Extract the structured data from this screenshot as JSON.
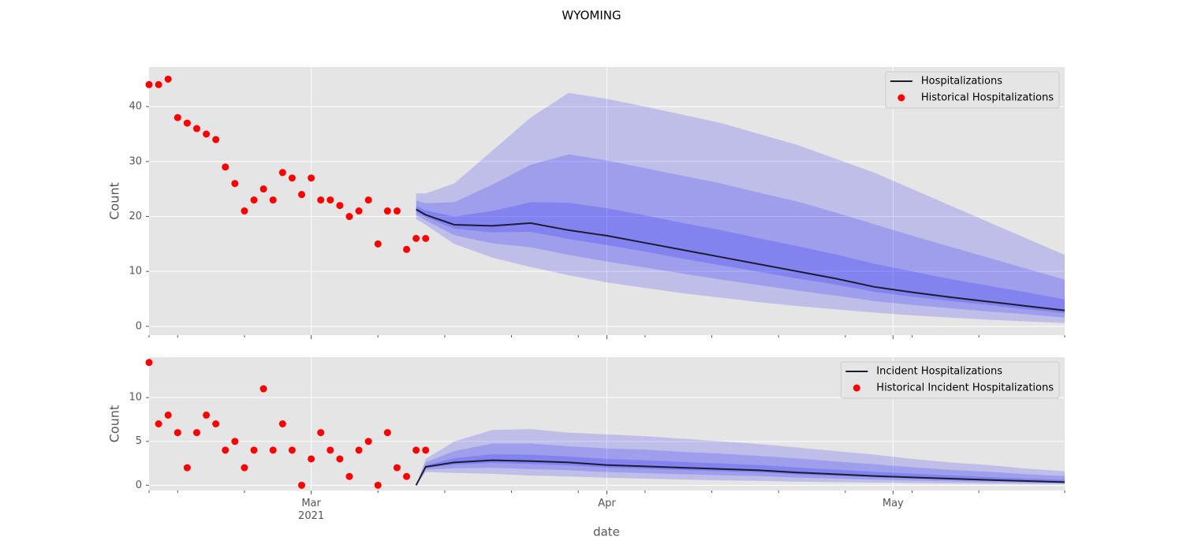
{
  "title": "WYOMING",
  "shared_xaxis": {
    "label": "date",
    "xlim": [
      "2021-02-12",
      "2021-05-19"
    ],
    "xticks": [
      {
        "value": "2021-03-01",
        "label": "Mar\n2021"
      },
      {
        "value": "2021-04-01",
        "label": "Apr"
      },
      {
        "value": "2021-05-01",
        "label": "May"
      }
    ],
    "xminorticks": [
      "2021-02-12",
      "2021-02-15",
      "2021-02-22",
      "2021-03-08",
      "2021-03-15",
      "2021-03-22",
      "2021-03-29",
      "2021-04-05",
      "2021-04-12",
      "2021-04-19",
      "2021-04-26",
      "2021-05-03",
      "2021-05-10",
      "2021-05-19"
    ]
  },
  "chart_data": [
    {
      "type": "line",
      "ylabel": "Count",
      "ylim": [
        -1.6,
        47.2
      ],
      "yticks": [
        0,
        10,
        20,
        30,
        40
      ],
      "grid": true,
      "legend": "upper right",
      "band_color": "#0000ff",
      "series": [
        {
          "name": "Hospitalizations",
          "color": "#1c1c30",
          "x": [
            "2021-03-12",
            "2021-03-13",
            "2021-03-16",
            "2021-03-20",
            "2021-03-24",
            "2021-03-28",
            "2021-04-01",
            "2021-04-05",
            "2021-04-09",
            "2021-04-13",
            "2021-04-17",
            "2021-04-21",
            "2021-04-25",
            "2021-04-29",
            "2021-05-03",
            "2021-05-07",
            "2021-05-11",
            "2021-05-15",
            "2021-05-19"
          ],
          "values": [
            21.3,
            20.3,
            18.5,
            18.3,
            18.8,
            17.5,
            16.5,
            15.2,
            13.9,
            12.6,
            11.3,
            10.0,
            8.7,
            7.2,
            6.2,
            5.3,
            4.5,
            3.7,
            2.9
          ]
        },
        {
          "name": "Historical Hospitalizations",
          "type": "scatter",
          "color": "#ff0000",
          "x": [
            "2021-02-12",
            "2021-02-13",
            "2021-02-14",
            "2021-02-15",
            "2021-02-16",
            "2021-02-17",
            "2021-02-18",
            "2021-02-19",
            "2021-02-20",
            "2021-02-21",
            "2021-02-22",
            "2021-02-23",
            "2021-02-24",
            "2021-02-25",
            "2021-02-26",
            "2021-02-27",
            "2021-02-28",
            "2021-03-01",
            "2021-03-02",
            "2021-03-03",
            "2021-03-04",
            "2021-03-05",
            "2021-03-06",
            "2021-03-07",
            "2021-03-08",
            "2021-03-09",
            "2021-03-10",
            "2021-03-11",
            "2021-03-12",
            "2021-03-13"
          ],
          "values": [
            44,
            44,
            45,
            38,
            37,
            36,
            35,
            34,
            29,
            26,
            21,
            23,
            25,
            23,
            28,
            27,
            24,
            27,
            23,
            23,
            22,
            20,
            21,
            23,
            15,
            21,
            21,
            14,
            16,
            16
          ]
        }
      ],
      "bands": [
        {
          "lower": [
            19.5,
            18.5,
            15,
            12.5,
            10.8,
            9.3,
            8.0,
            7.0,
            6.0,
            5.2,
            4.4,
            3.7,
            3.1,
            2.5,
            2.0,
            1.6,
            1.2,
            0.9,
            0.6
          ],
          "upper": [
            24.2,
            24.2,
            26,
            32,
            38,
            42.5,
            41.4,
            40,
            38.5,
            37,
            35,
            33,
            30.5,
            28,
            25,
            22,
            19,
            16,
            13
          ]
        },
        {
          "lower": [
            20.3,
            19.3,
            16.6,
            15.1,
            14.4,
            13.0,
            11.8,
            10.7,
            9.6,
            8.5,
            7.5,
            6.5,
            5.6,
            4.6,
            3.9,
            3.3,
            2.7,
            2.2,
            1.6
          ],
          "upper": [
            22.9,
            22.4,
            22.6,
            25.8,
            29.4,
            31.3,
            30.2,
            28.8,
            27.4,
            26.0,
            24.3,
            22.7,
            20.7,
            18.6,
            16.5,
            14.5,
            12.5,
            10.5,
            8.5
          ]
        },
        {
          "lower": [
            20.9,
            19.9,
            17.8,
            17.1,
            17.2,
            15.9,
            14.8,
            13.6,
            12.3,
            11.1,
            9.9,
            8.7,
            7.6,
            6.3,
            5.4,
            4.6,
            3.9,
            3.1,
            2.4
          ],
          "upper": [
            21.9,
            21.1,
            20.0,
            21.0,
            22.6,
            22.5,
            21.5,
            20.2,
            18.8,
            17.5,
            16.0,
            14.6,
            13.1,
            11.4,
            10.0,
            8.6,
            7.4,
            6.2,
            4.9
          ]
        }
      ]
    },
    {
      "type": "line",
      "ylabel": "Count",
      "ylim": [
        -0.6,
        14.6
      ],
      "yticks": [
        0,
        5,
        10
      ],
      "grid": true,
      "legend": "upper right",
      "band_color": "#0000ff",
      "series": [
        {
          "name": "Incident Hospitalizations",
          "color": "#1c1c30",
          "x": [
            "2021-03-12",
            "2021-03-13",
            "2021-03-16",
            "2021-03-20",
            "2021-03-24",
            "2021-03-28",
            "2021-04-01",
            "2021-04-05",
            "2021-04-09",
            "2021-04-13",
            "2021-04-17",
            "2021-04-21",
            "2021-04-25",
            "2021-04-29",
            "2021-05-03",
            "2021-05-07",
            "2021-05-11",
            "2021-05-15",
            "2021-05-19"
          ],
          "values": [
            0,
            2.1,
            2.6,
            2.85,
            2.75,
            2.6,
            2.3,
            2.15,
            2.0,
            1.85,
            1.7,
            1.45,
            1.25,
            1.05,
            0.9,
            0.75,
            0.6,
            0.48,
            0.36
          ]
        },
        {
          "name": "Historical Incident Hospitalizations",
          "type": "scatter",
          "color": "#ff0000",
          "x": [
            "2021-02-12",
            "2021-02-13",
            "2021-02-14",
            "2021-02-15",
            "2021-02-16",
            "2021-02-17",
            "2021-02-18",
            "2021-02-19",
            "2021-02-20",
            "2021-02-21",
            "2021-02-22",
            "2021-02-23",
            "2021-02-24",
            "2021-02-25",
            "2021-02-26",
            "2021-02-27",
            "2021-02-28",
            "2021-03-01",
            "2021-03-02",
            "2021-03-03",
            "2021-03-04",
            "2021-03-05",
            "2021-03-06",
            "2021-03-07",
            "2021-03-08",
            "2021-03-09",
            "2021-03-10",
            "2021-03-11",
            "2021-03-12",
            "2021-03-13"
          ],
          "values": [
            14,
            7,
            8,
            6,
            2,
            6,
            8,
            7,
            4,
            5,
            2,
            4,
            11,
            4,
            7,
            4,
            0,
            3,
            6,
            4,
            3,
            1,
            4,
            5,
            0,
            6,
            2,
            1,
            4,
            4
          ]
        }
      ],
      "bands": [
        {
          "lower": [
            0,
            1.5,
            1.4,
            1.3,
            1.1,
            1.0,
            0.85,
            0.75,
            0.65,
            0.55,
            0.5,
            0.4,
            0.35,
            0.3,
            0.25,
            0.2,
            0.15,
            0.12,
            0.1
          ],
          "upper": [
            0,
            3.0,
            5.0,
            6.3,
            6.4,
            6.0,
            5.8,
            5.6,
            5.3,
            5.0,
            4.7,
            4.3,
            3.9,
            3.5,
            3.0,
            2.6,
            2.3,
            1.9,
            1.6
          ]
        },
        {
          "lower": [
            0,
            1.77,
            1.94,
            2.0,
            1.84,
            1.72,
            1.5,
            1.38,
            1.26,
            1.13,
            1.04,
            0.87,
            0.76,
            0.64,
            0.54,
            0.45,
            0.35,
            0.28,
            0.22
          ],
          "upper": [
            0,
            2.6,
            3.9,
            4.75,
            4.75,
            4.45,
            4.2,
            4.05,
            3.8,
            3.6,
            3.35,
            3.05,
            2.7,
            2.4,
            2.05,
            1.75,
            1.55,
            1.26,
            1.04
          ]
        },
        {
          "lower": [
            0,
            1.98,
            2.36,
            2.54,
            2.42,
            2.28,
            2.01,
            1.87,
            1.73,
            1.59,
            1.46,
            1.24,
            1.07,
            0.9,
            0.77,
            0.64,
            0.51,
            0.41,
            0.31
          ],
          "upper": [
            0,
            2.28,
            3.08,
            3.54,
            3.48,
            3.28,
            3.0,
            2.84,
            2.66,
            2.48,
            2.3,
            2.02,
            1.78,
            1.54,
            1.32,
            1.12,
            0.94,
            0.76,
            0.61
          ]
        }
      ]
    }
  ]
}
